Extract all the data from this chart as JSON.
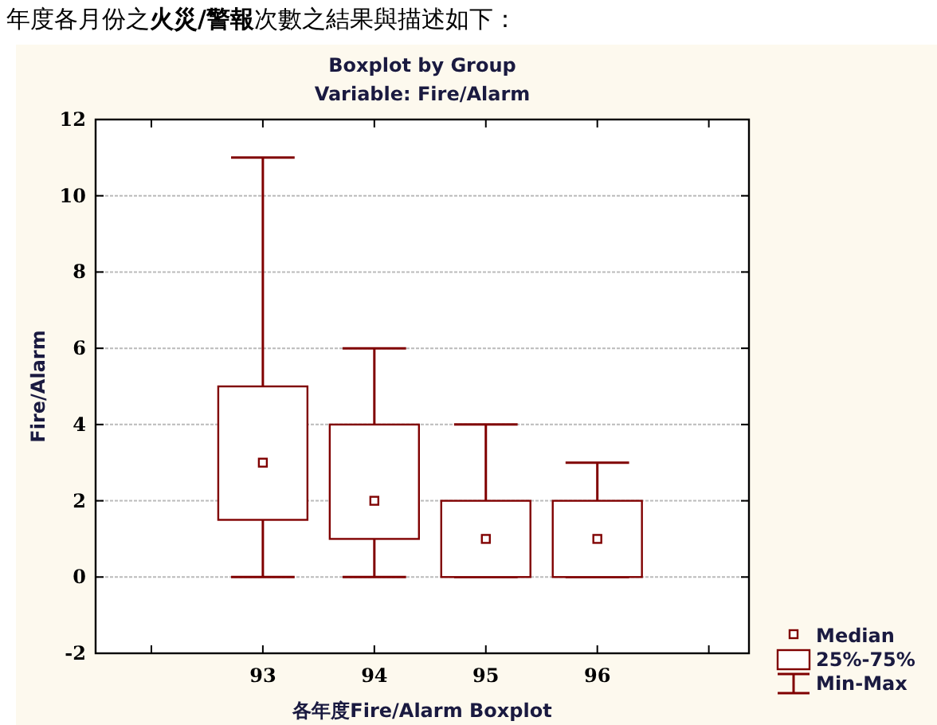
{
  "chart_data": {
    "type": "box",
    "title": "Boxplot by Group",
    "subtitle": "Variable: Fire/Alarm",
    "xlabel": "各年度Fire/Alarm Boxplot",
    "ylabel": "Fire/Alarm",
    "categories": [
      "93",
      "94",
      "95",
      "96"
    ],
    "series": [
      {
        "color": "#800000",
        "boxes": [
          {
            "low": 0,
            "q1": 1.5,
            "median": 3,
            "q3": 5,
            "high": 11
          },
          {
            "low": 0,
            "q1": 1,
            "median": 2,
            "q3": 4,
            "high": 6
          },
          {
            "low": 0,
            "q1": 0,
            "median": 1,
            "q3": 2,
            "high": 4
          },
          {
            "low": 0,
            "q1": 0,
            "median": 1,
            "q3": 2,
            "high": 3
          }
        ]
      }
    ],
    "ylim": [
      -2,
      12
    ],
    "yticks": [
      -2,
      0,
      2,
      4,
      6,
      8,
      10,
      12
    ],
    "grid": "y",
    "marker": "square",
    "annotations": [
      "年度各月份之**火災/警報**次數之結果與描述如下：",
      "Median",
      "25%-75%",
      "Min-Max"
    ]
  }
}
